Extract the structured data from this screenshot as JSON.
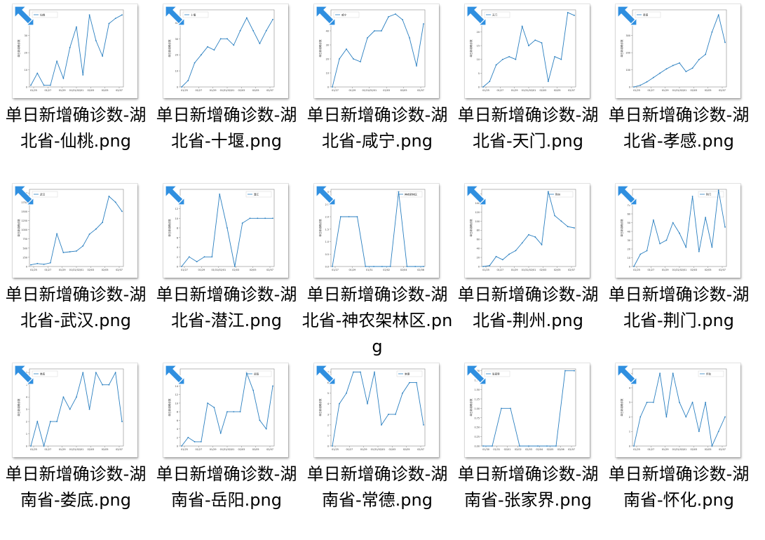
{
  "colors": {
    "line": "#2a7fc0",
    "frame": "#888888",
    "shortcut_arrow": "#2f8fe0"
  },
  "files": [
    {
      "name": "单日新增确诊数-湖北省-仙桃.png",
      "legend": "仙桃",
      "x_ticks": [
        "01/25",
        "01/27",
        "01/29",
        "01/31/02/01",
        "02/03",
        "02/05",
        "02/07"
      ],
      "y_ticks": [
        "0",
        "10",
        "20",
        "30",
        "40"
      ],
      "chart_data": {
        "type": "line",
        "ylim": [
          0,
          45
        ],
        "values": [
          1,
          8,
          1,
          1,
          15,
          5,
          23,
          35,
          7,
          42,
          27,
          18,
          37,
          40,
          42
        ]
      }
    },
    {
      "name": "单日新增确诊数-湖北省-十堰.png",
      "legend": "十堰",
      "x_ticks": [
        "01/25",
        "01/27",
        "01/29",
        "01/31/02/01",
        "02/03",
        "02/05",
        "02/07"
      ],
      "y_ticks": [
        "0",
        "10",
        "20",
        "30",
        "40"
      ],
      "chart_data": {
        "type": "line",
        "ylim": [
          0,
          48
        ],
        "values": [
          0,
          4,
          15,
          20,
          25,
          23,
          30,
          30,
          26,
          35,
          43,
          35,
          27,
          35,
          42
        ]
      }
    },
    {
      "name": "单日新增确诊数-湖北省-咸宁.png",
      "legend": "咸宁",
      "x_ticks": [
        "01/27",
        "01/29",
        "01/31/02/01",
        "02/03",
        "02/05",
        "02/07"
      ],
      "y_ticks": [
        "0",
        "10",
        "20",
        "30",
        "40",
        "50"
      ],
      "chart_data": {
        "type": "line",
        "ylim": [
          0,
          55
        ],
        "values": [
          0,
          20,
          27,
          20,
          18,
          35,
          40,
          40,
          50,
          52,
          48,
          35,
          15,
          45
        ]
      }
    },
    {
      "name": "单日新增确诊数-湖北省-天门.png",
      "legend": "天门",
      "x_ticks": [
        "01/25",
        "01/27",
        "01/29",
        "01/31/02/01",
        "02/03",
        "02/05",
        "02/07"
      ],
      "y_ticks": [
        "0",
        "5",
        "10",
        "15",
        "20",
        "25"
      ],
      "chart_data": {
        "type": "line",
        "ylim": [
          0,
          28
        ],
        "values": [
          0,
          2,
          8,
          10,
          11,
          10,
          22,
          15,
          17,
          16,
          2,
          11,
          10,
          27,
          26
        ]
      }
    },
    {
      "name": "单日新增确诊数-湖北省-孝感.png",
      "legend": "孝感",
      "x_ticks": [
        "01/25",
        "01/27",
        "01/29",
        "01/31/02/01",
        "02/03",
        "02/05",
        "02/07"
      ],
      "y_ticks": [
        "0",
        "100",
        "200",
        "300",
        "400"
      ],
      "chart_data": {
        "type": "line",
        "ylim": [
          0,
          450
        ],
        "values": [
          0,
          10,
          30,
          55,
          80,
          105,
          125,
          140,
          90,
          110,
          160,
          190,
          320,
          420,
          260
        ]
      }
    },
    {
      "name": "单日新增确诊数-湖北省-武汉.png",
      "legend": "武汉",
      "x_ticks": [
        "01/25",
        "01/27",
        "01/29",
        "01/31/02/01",
        "02/03",
        "02/05",
        "02/07"
      ],
      "y_ticks": [
        "0",
        "250",
        "500",
        "750",
        "1000",
        "1250",
        "1500",
        "1750",
        "2000"
      ],
      "chart_data": {
        "type": "line",
        "ylim": [
          0,
          2100
        ],
        "values": [
          46,
          80,
          60,
          100,
          890,
          380,
          400,
          420,
          560,
          880,
          1020,
          1200,
          1910,
          1750,
          1500
        ]
      }
    },
    {
      "name": "单日新增确诊数-湖北省-潜江.png",
      "legend": "潜江",
      "x_ticks": [
        "01/27",
        "01/29",
        "01/31/02/01",
        "02/03",
        "02/05",
        "02/07"
      ],
      "y_ticks": [
        "0",
        "2",
        "4",
        "6",
        "8",
        "10",
        "12",
        "14"
      ],
      "chart_data": {
        "type": "line",
        "ylim": [
          0,
          16
        ],
        "values": [
          0,
          2,
          1,
          2,
          2,
          15,
          8,
          0,
          9,
          10,
          10,
          10,
          10
        ]
      }
    },
    {
      "name": "单日新增确诊数-湖北省-神农架林区.png",
      "legend": "神农架林区",
      "x_ticks": [
        "01/27",
        "01/29",
        "01/31",
        "02/02",
        "02/04",
        "02/06"
      ],
      "y_ticks": [
        "0.0",
        "0.5",
        "1.0",
        "1.5",
        "2.0",
        "2.5",
        "3.0"
      ],
      "chart_data": {
        "type": "line",
        "ylim": [
          0,
          3.1
        ],
        "values": [
          0,
          2,
          2,
          2,
          0,
          0,
          0,
          0,
          3,
          0,
          0,
          0
        ]
      }
    },
    {
      "name": "单日新增确诊数-湖北省-荆州.png",
      "legend": "荆州",
      "x_ticks": [
        "01/25",
        "01/27",
        "01/29",
        "01/31/02/01",
        "02/03",
        "02/05",
        "02/07"
      ],
      "y_ticks": [
        "0",
        "20",
        "40",
        "60",
        "80",
        "100",
        "120",
        "140",
        "160"
      ],
      "chart_data": {
        "type": "line",
        "ylim": [
          0,
          170
        ],
        "values": [
          0,
          2,
          22,
          15,
          27,
          35,
          52,
          70,
          65,
          48,
          165,
          112,
          100,
          88,
          85
        ]
      }
    },
    {
      "name": "单日新增确诊数-湖北省-荆门.png",
      "legend": "荆门",
      "x_ticks": [
        "01/25",
        "01/27",
        "01/29",
        "01/31/02/01",
        "02/03",
        "02/05",
        "02/07"
      ],
      "y_ticks": [
        "0",
        "10",
        "20",
        "30",
        "40",
        "50",
        "60",
        "70",
        "80"
      ],
      "chart_data": {
        "type": "line",
        "ylim": [
          0,
          88
        ],
        "values": [
          0,
          14,
          18,
          53,
          26,
          30,
          50,
          38,
          22,
          80,
          17,
          56,
          22,
          87,
          45
        ]
      }
    },
    {
      "name": "单日新增确诊数-湖南省-娄底.png",
      "legend": "娄底",
      "x_ticks": [
        "01/25",
        "01/27",
        "01/29",
        "01/31/02/01",
        "02/03",
        "02/05",
        "02/07"
      ],
      "y_ticks": [
        "0",
        "1",
        "2",
        "3",
        "4",
        "5",
        "6"
      ],
      "chart_data": {
        "type": "line",
        "ylim": [
          0,
          6.3
        ],
        "values": [
          0,
          2,
          0,
          2,
          2,
          4,
          3,
          4,
          6,
          3,
          6,
          5,
          5,
          6,
          2
        ]
      }
    },
    {
      "name": "单日新增确诊数-湖南省-岳阳.png",
      "legend": "岳阳",
      "x_ticks": [
        "01/25",
        "01/27",
        "01/29",
        "01/31/02/01",
        "02/03",
        "02/05",
        "02/07"
      ],
      "y_ticks": [
        "0",
        "2",
        "4",
        "6",
        "8",
        "10",
        "12",
        "14",
        "16"
      ],
      "chart_data": {
        "type": "line",
        "ylim": [
          0,
          18
        ],
        "values": [
          0,
          2,
          1,
          1,
          10,
          9,
          3,
          8,
          8,
          8,
          17,
          13,
          6,
          4,
          14
        ]
      }
    },
    {
      "name": "单日新增确诊数-湖南省-常德.png",
      "legend": "常德",
      "x_ticks": [
        "01/25",
        "01/27",
        "01/29",
        "01/31/02/01",
        "02/03",
        "02/05",
        "02/07"
      ],
      "y_ticks": [
        "0",
        "1",
        "2",
        "3",
        "4",
        "5",
        "6",
        "7"
      ],
      "chart_data": {
        "type": "line",
        "ylim": [
          0,
          7.3
        ],
        "values": [
          0,
          4,
          5,
          7,
          7,
          4,
          7,
          2,
          3,
          3,
          5,
          6,
          6,
          2
        ]
      }
    },
    {
      "name": "单日新增确诊数-湖南省-张家界.png",
      "legend": "张家界",
      "x_ticks": [
        "01/30",
        "01/31",
        "02/01",
        "02/02",
        "02/03",
        "02/04",
        "02/05",
        "02/06",
        "02/07"
      ],
      "y_ticks": [
        "0.00",
        "0.25",
        "0.50",
        "0.75",
        "1.00",
        "1.25",
        "1.50",
        "1.75",
        "2.00"
      ],
      "chart_data": {
        "type": "line",
        "ylim": [
          0,
          2.05
        ],
        "values": [
          0,
          0,
          1,
          1,
          0,
          0,
          0,
          0,
          0,
          2,
          2
        ]
      }
    },
    {
      "name": "单日新增确诊数-湖南省-怀化.png",
      "legend": "怀化",
      "x_ticks": [
        "01/25",
        "01/27",
        "01/29",
        "01/31/02/01",
        "02/03",
        "02/05",
        "02/07"
      ],
      "y_ticks": [
        "0",
        "1",
        "2",
        "3",
        "4",
        "5"
      ],
      "chart_data": {
        "type": "line",
        "ylim": [
          0,
          5.3
        ],
        "values": [
          0,
          2,
          3,
          3,
          5,
          2,
          5,
          3,
          2,
          3,
          1,
          3,
          0,
          1,
          2
        ]
      }
    }
  ]
}
